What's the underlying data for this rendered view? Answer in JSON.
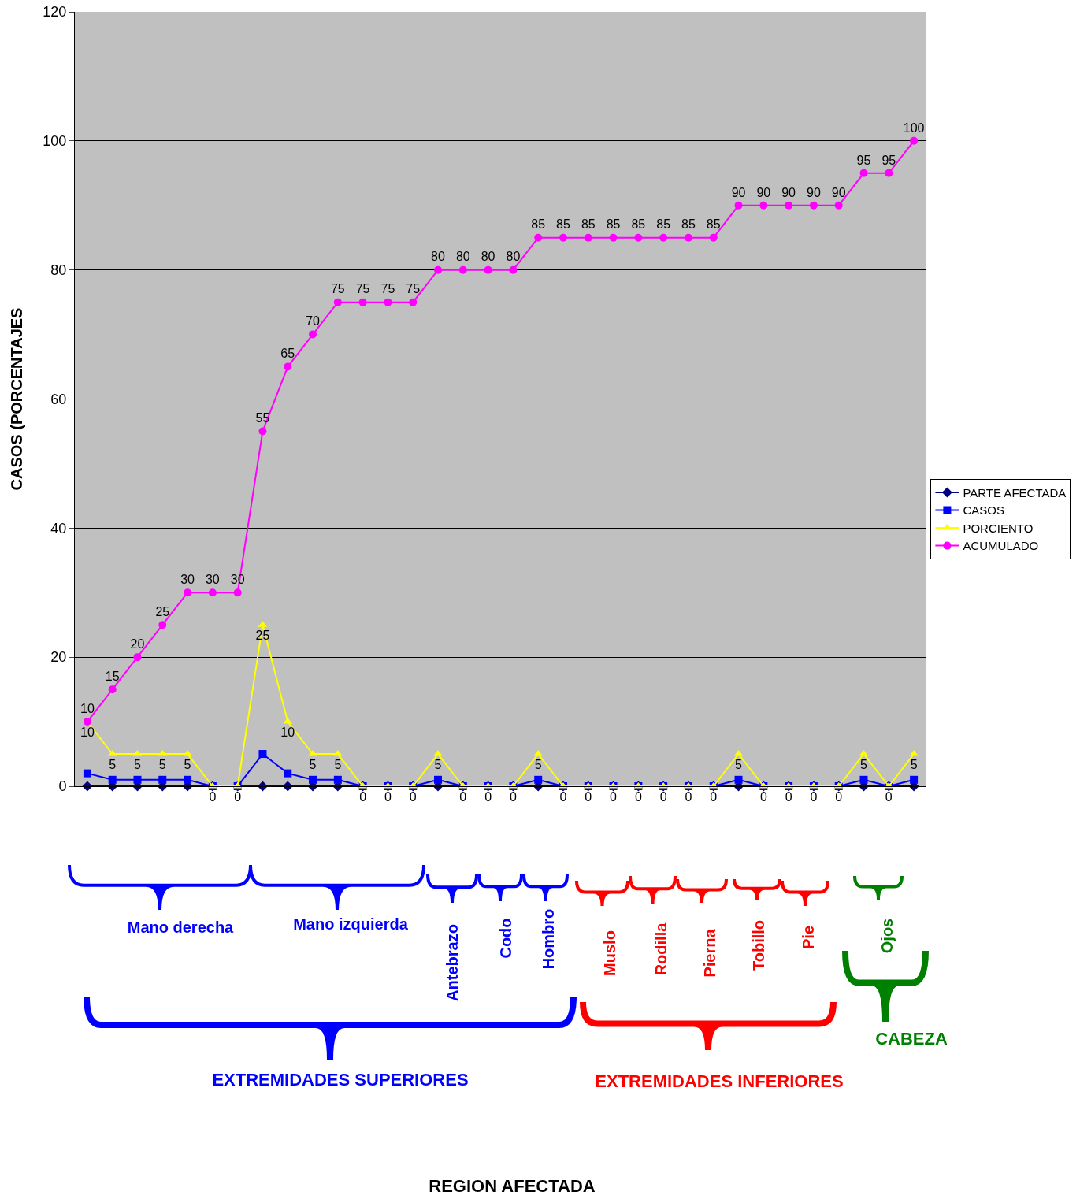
{
  "chart_data": {
    "type": "line",
    "ylabel": "CASOS (PORCENTAJES",
    "categories": [
      null,
      null,
      null,
      null,
      null,
      null,
      null,
      null,
      null,
      null,
      null,
      null,
      null,
      null,
      null,
      null,
      null,
      null,
      null,
      null,
      null,
      null,
      null,
      null,
      null,
      null,
      null,
      null,
      null,
      null,
      null,
      null,
      null,
      null
    ],
    "ylim": [
      0,
      120
    ],
    "yticks": [
      0,
      20,
      40,
      60,
      80,
      100,
      120
    ],
    "grid": "y",
    "legend": "right",
    "series": [
      {
        "name": "PARTE AFECTADA",
        "color": "#000080",
        "marker": "diamond",
        "values": [
          0,
          0,
          0,
          0,
          0,
          0,
          0,
          0,
          0,
          0,
          0,
          0,
          0,
          0,
          0,
          0,
          0,
          0,
          0,
          0,
          0,
          0,
          0,
          0,
          0,
          0,
          0,
          0,
          0,
          0,
          0,
          0,
          0,
          0
        ]
      },
      {
        "name": "CASOS",
        "color": "#0000ff",
        "marker": "square",
        "values": [
          2,
          1,
          1,
          1,
          1,
          0,
          0,
          5,
          2,
          1,
          1,
          0,
          0,
          0,
          1,
          0,
          0,
          0,
          1,
          0,
          0,
          0,
          0,
          0,
          0,
          0,
          1,
          0,
          0,
          0,
          0,
          1,
          0,
          1
        ]
      },
      {
        "name": "PORCIENTO",
        "color": "#ffff00",
        "marker": "triangle",
        "data_labels": true,
        "values": [
          10,
          5,
          5,
          5,
          5,
          0,
          0,
          25,
          10,
          5,
          5,
          0,
          0,
          0,
          5,
          0,
          0,
          0,
          5,
          0,
          0,
          0,
          0,
          0,
          0,
          0,
          5,
          0,
          0,
          0,
          0,
          5,
          0,
          5
        ]
      },
      {
        "name": "ACUMULADO",
        "color": "#ff00ff",
        "marker": "circle",
        "data_labels": true,
        "values": [
          10,
          15,
          20,
          25,
          30,
          30,
          30,
          55,
          65,
          70,
          75,
          75,
          75,
          75,
          80,
          80,
          80,
          80,
          85,
          85,
          85,
          85,
          85,
          85,
          85,
          85,
          90,
          90,
          90,
          90,
          90,
          95,
          95,
          100
        ]
      }
    ],
    "annotations": [
      "Mano derecha",
      "Mano izquierda",
      "Antebrazo",
      "Codo",
      "Hombro",
      "Muslo",
      "Rodilla",
      "Pierna",
      "Tobillo",
      "Pie",
      "Ojos",
      "EXTREMIDADES SUPERIORES",
      "EXTREMIDADES INFERIORES",
      "CABEZA",
      "REGION AFECTADA"
    ]
  }
}
